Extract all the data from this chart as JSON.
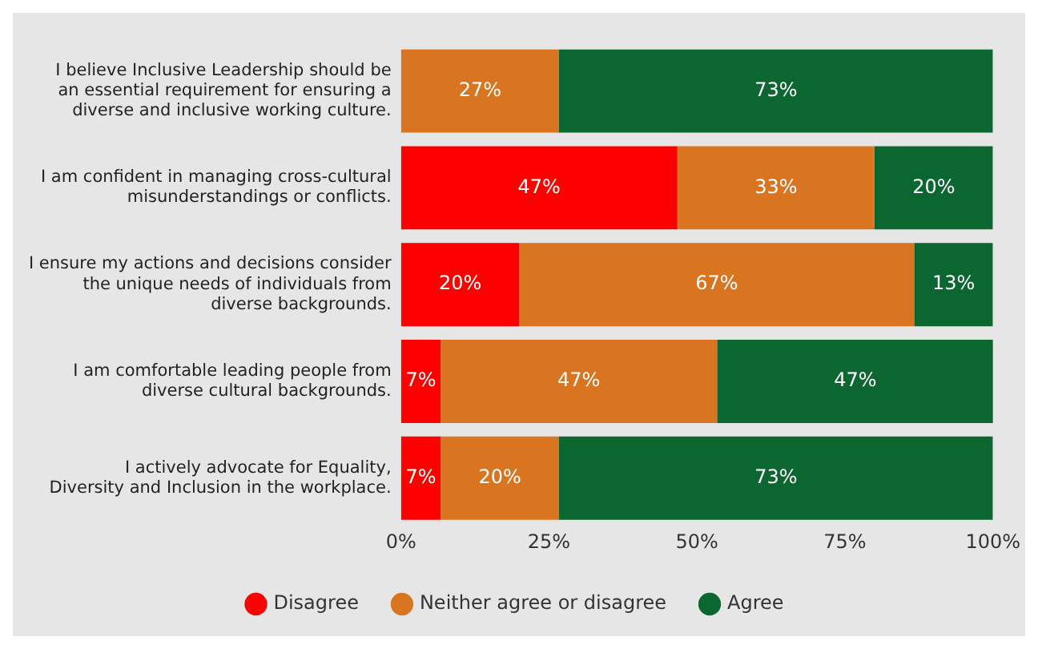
{
  "chart_data": {
    "type": "bar",
    "orientation": "horizontal",
    "stacked": true,
    "categories": [
      "I believe Inclusive Leadership should be an essential requirement for ensuring a diverse and inclusive working culture.",
      "I am confident in managing cross-cultural misunderstandings or conflicts.",
      "I ensure my actions and decisions consider the unique needs of individuals from diverse backgrounds.",
      "I am comfortable leading people from diverse cultural backgrounds.",
      "I actively advocate for Equality, Diversity and Inclusion in the workplace."
    ],
    "series": [
      {
        "name": "Disagree",
        "color": "#ff0000",
        "values": [
          null,
          46.7,
          20,
          6.7,
          6.7
        ],
        "value_labels": [
          null,
          "47%",
          "20%",
          "7%",
          "7%"
        ]
      },
      {
        "name": "Neither agree or disagree",
        "color": "#d97421",
        "values": [
          26.7,
          33.3,
          66.7,
          46.7,
          20
        ],
        "value_labels": [
          "27%",
          "33%",
          "67%",
          "47%",
          "20%"
        ]
      },
      {
        "name": "Agree",
        "color": "#0b6630",
        "values": [
          73.3,
          20,
          13.3,
          46.7,
          73.3
        ],
        "value_labels": [
          "73%",
          "20%",
          "13%",
          "47%",
          "73%"
        ]
      }
    ],
    "xlim": [
      0,
      100
    ],
    "xticks": [
      {
        "value": 0,
        "label": "0%"
      },
      {
        "value": 25,
        "label": "25%"
      },
      {
        "value": 50,
        "label": "50%"
      },
      {
        "value": 75,
        "label": "75%"
      },
      {
        "value": 100,
        "label": "100%"
      }
    ],
    "legend": "bottom",
    "grid": false
  }
}
